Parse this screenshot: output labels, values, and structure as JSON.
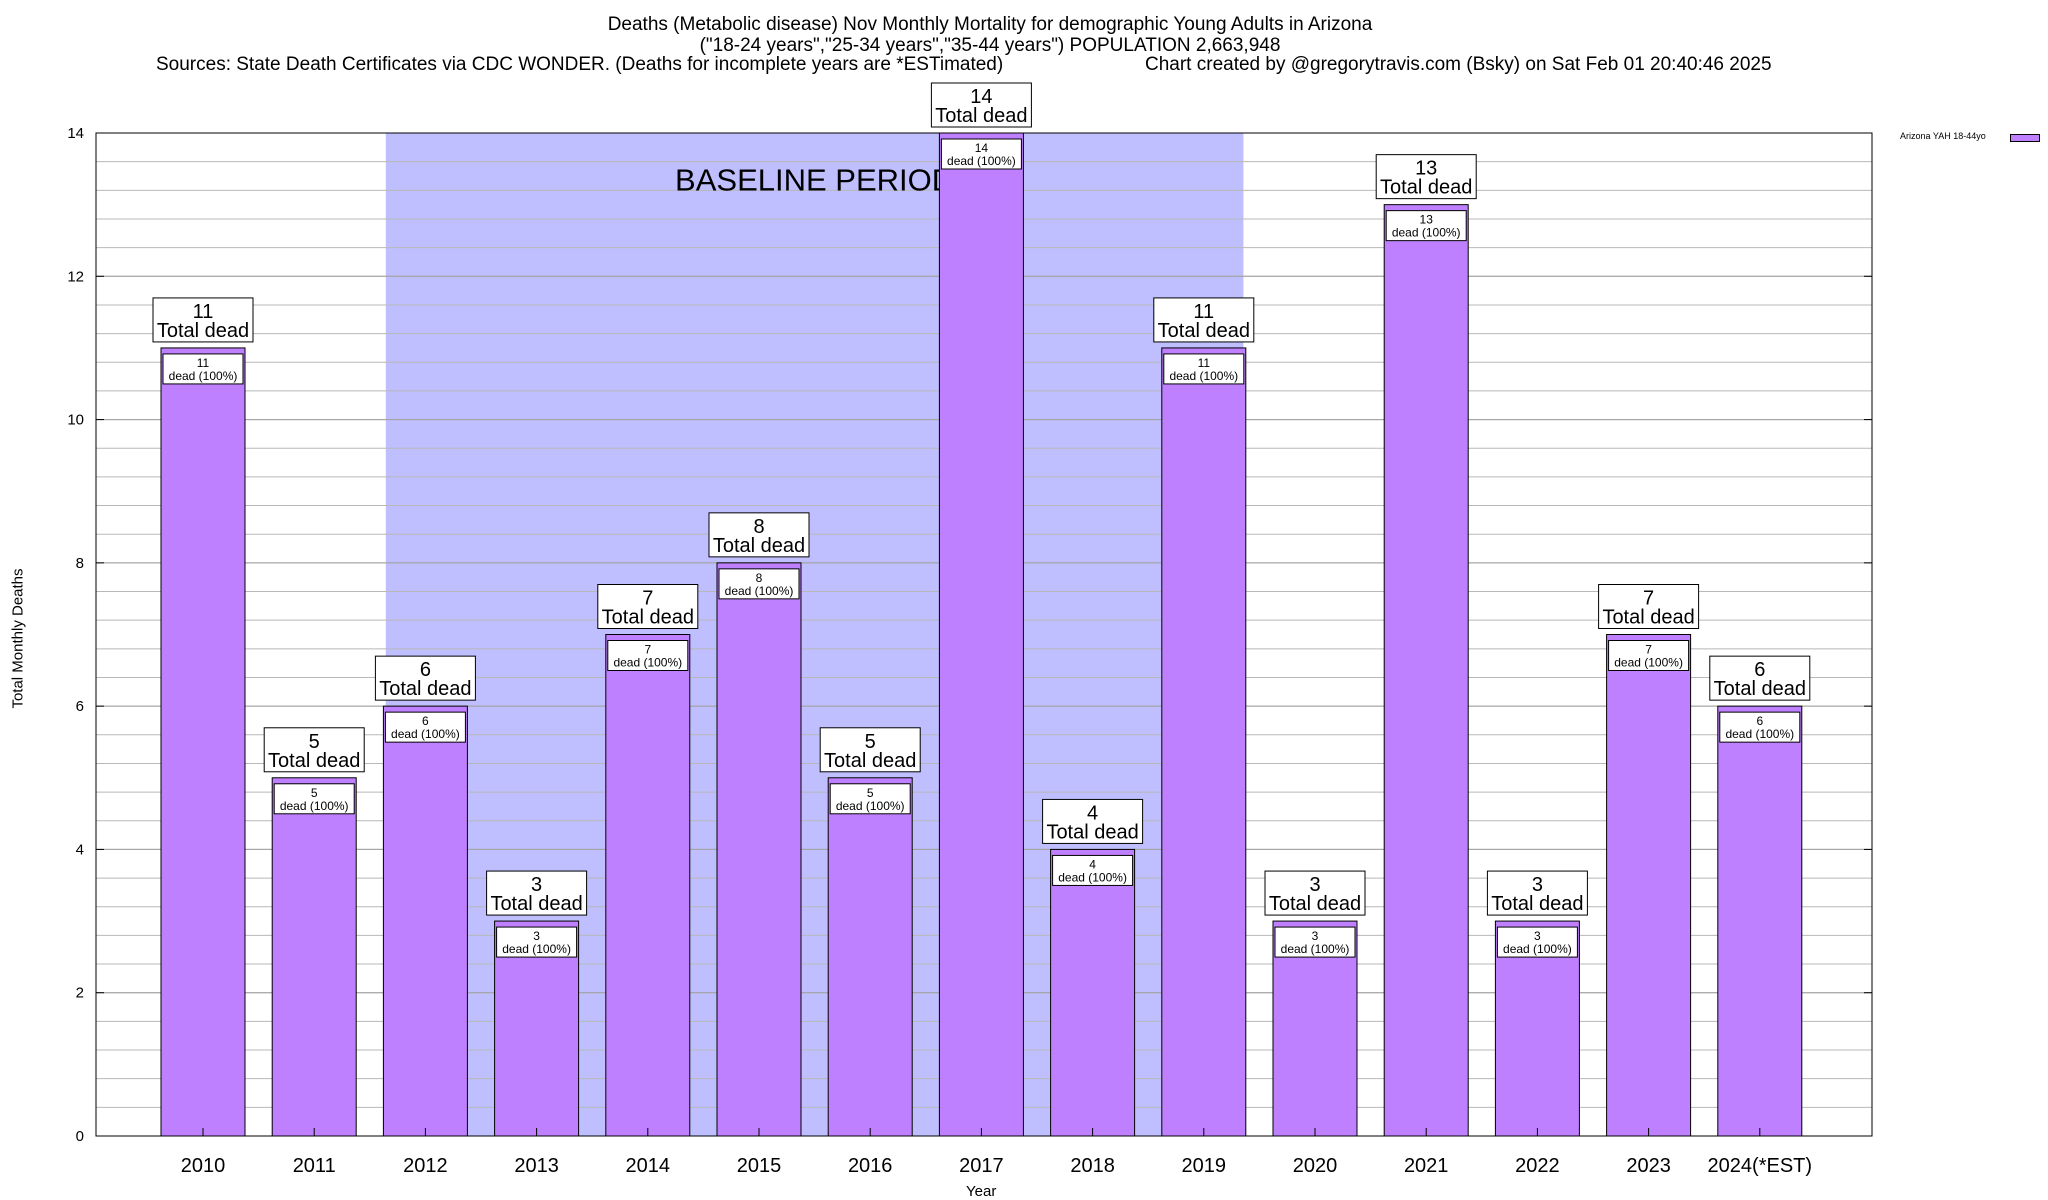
{
  "header": {
    "title_line1": "Deaths (Metabolic disease) Nov Monthly Mortality for demographic Young Adults in Arizona",
    "title_line2": "(\"18-24 years\",\"25-34 years\",\"35-44 years\") POPULATION 2,663,948",
    "source_left": "Sources: State Death Certificates via CDC WONDER. (Deaths for incomplete years are *ESTimated)",
    "source_right": "Chart created by @gregorytravis.com (Bsky) on Sat Feb 01 20:40:46 2025"
  },
  "legend": {
    "label": "Arizona YAH 18-44yo",
    "placement": "top-right outside plot"
  },
  "colors": {
    "bar": "#bf80ff",
    "baseline_band": "#bfbfff",
    "label_box_border": "#000000"
  },
  "chart_data": {
    "type": "bar",
    "xlabel": "Year",
    "ylabel": "Total Monthly Deaths",
    "ylim": [
      0,
      14
    ],
    "y_ticks": [
      0,
      2,
      4,
      6,
      8,
      10,
      12,
      14
    ],
    "grid": "horizontal",
    "categories": [
      "2010",
      "2011",
      "2012",
      "2013",
      "2014",
      "2015",
      "2016",
      "2017",
      "2018",
      "2019",
      "2020",
      "2021",
      "2022",
      "2023",
      "2024(*EST)"
    ],
    "series": [
      {
        "name": "Arizona YAH 18-44yo",
        "values": [
          11,
          5,
          6,
          3,
          7,
          8,
          5,
          14,
          4,
          11,
          3,
          13,
          3,
          7,
          6
        ]
      }
    ],
    "total_label_suffix": "Total dead",
    "bar_label_suffix": "dead (100%)",
    "annotation": {
      "text": "BASELINE PERIOD",
      "range_categories": [
        "2012",
        "2019"
      ]
    }
  }
}
